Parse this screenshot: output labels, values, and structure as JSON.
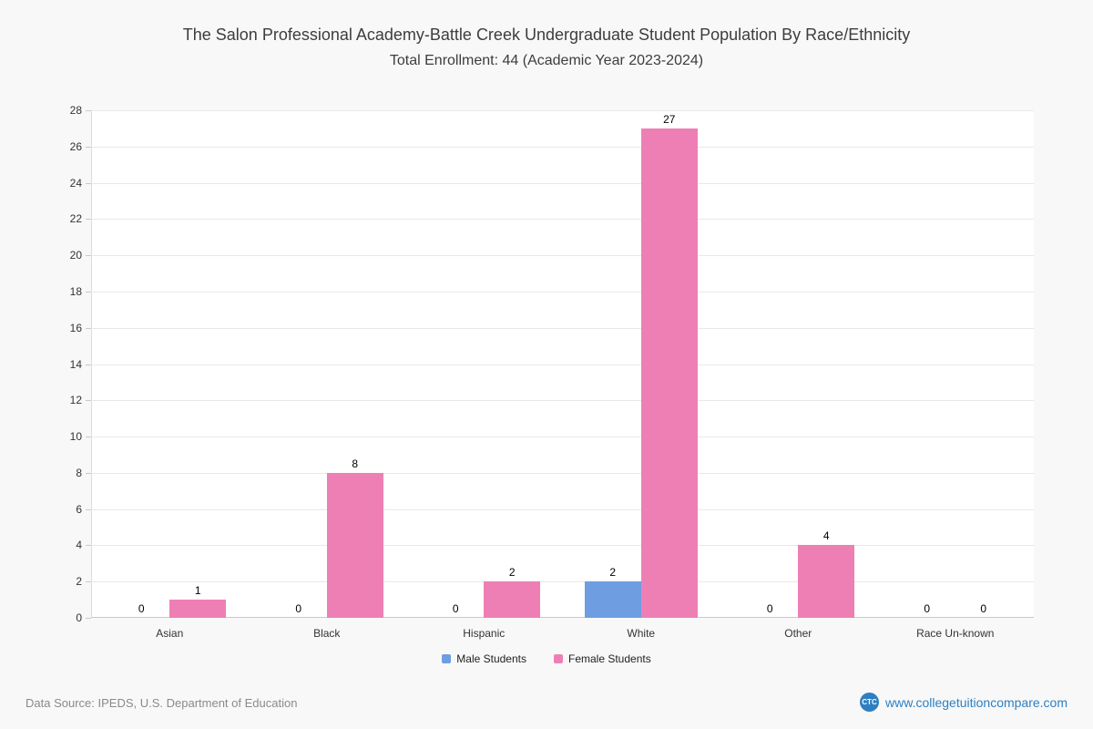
{
  "page": {
    "footer": {
      "source": "Data Source: IPEDS, U.S. Department of Education",
      "badge": "CTC",
      "site": "www.collegetuitioncompare.com"
    }
  },
  "chart_data": {
    "type": "bar",
    "title": "The Salon Professional Academy-Battle Creek Undergraduate Student Population By Race/Ethnicity",
    "subtitle": "Total Enrollment: 44 (Academic Year 2023-2024)",
    "categories": [
      "Asian",
      "Black",
      "Hispanic",
      "White",
      "Other",
      "Race Un-known"
    ],
    "series": [
      {
        "name": "Male Students",
        "color": "#6f9de2",
        "values": [
          0,
          0,
          0,
          2,
          0,
          0
        ]
      },
      {
        "name": "Female Students",
        "color": "#ee7fb5",
        "values": [
          1,
          8,
          2,
          27,
          4,
          0
        ]
      }
    ],
    "ylim": [
      0,
      28
    ],
    "ytick_step": 2,
    "grid": true,
    "legend_position": "bottom",
    "xlabel": "",
    "ylabel": ""
  }
}
